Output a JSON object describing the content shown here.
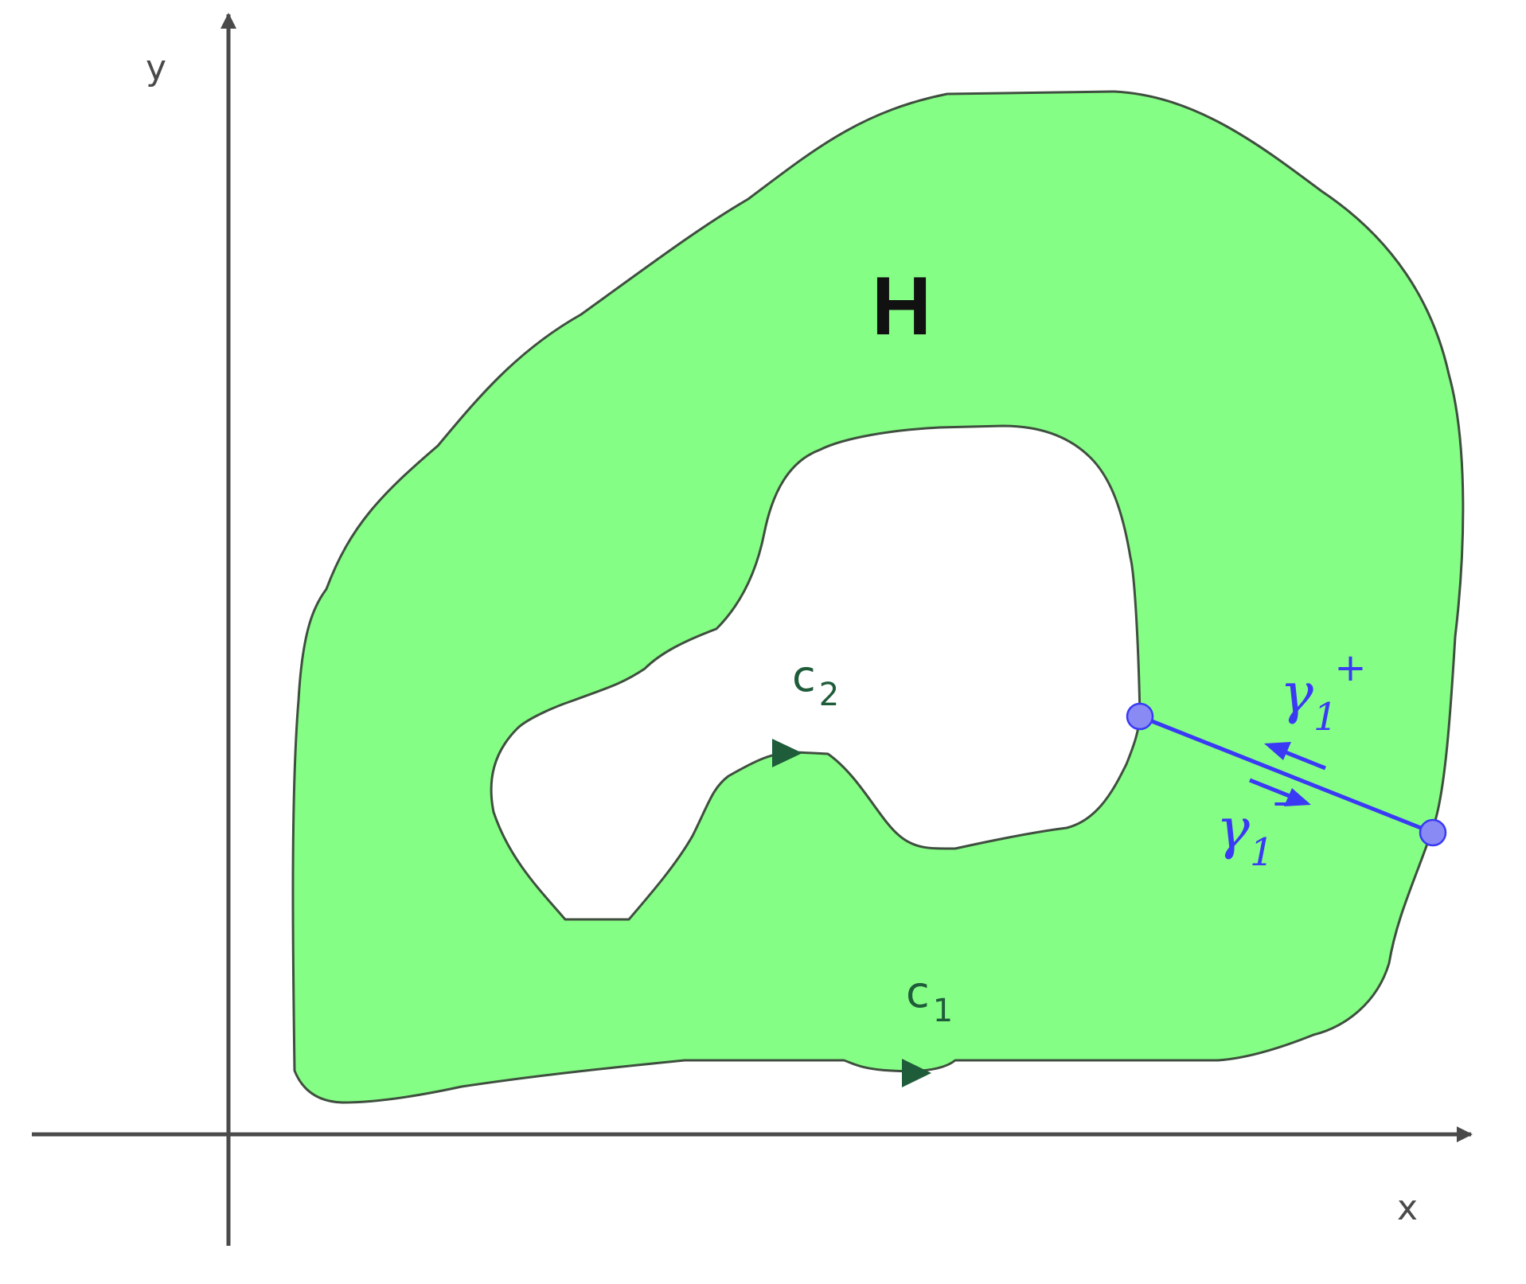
{
  "axes": {
    "x_label": "x",
    "y_label": "y"
  },
  "region": {
    "label": "H",
    "fill_color": "#85fe85",
    "stroke_color": "#3f4f3f"
  },
  "curves": {
    "outer": {
      "label": "c",
      "subscript": "1",
      "color": "#1f5c3a"
    },
    "inner": {
      "label": "c",
      "subscript": "2",
      "color": "#1f5c3a"
    }
  },
  "cut": {
    "color": "#3a3af5",
    "endpoint_fill": "#8a8af5",
    "plus": {
      "symbol": "γ",
      "subscript": "1",
      "superscript": "+"
    },
    "minus": {
      "symbol": "γ",
      "subscript": "1",
      "superscript": "−"
    }
  }
}
